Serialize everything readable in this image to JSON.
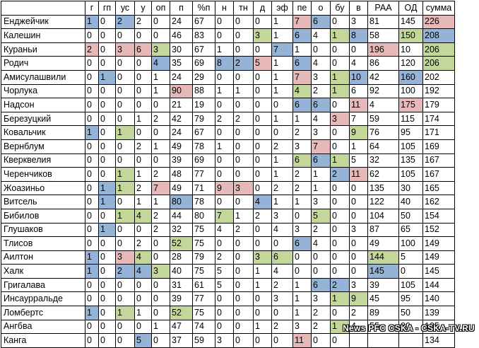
{
  "table": {
    "headers": [
      "",
      "г",
      "гп",
      "ус",
      "у",
      "оп",
      "п",
      "%п",
      "н",
      "тн",
      "д",
      "эф",
      "пе",
      "о",
      "бу",
      "в",
      "РАА",
      "ОД",
      "сумма"
    ],
    "rows": [
      {
        "name": "Енджейчик",
        "values": [
          "1",
          "0",
          "2",
          "2",
          "0",
          "24",
          "67",
          "0",
          "0",
          "0",
          "1",
          "7",
          "6",
          "0",
          "3",
          "81",
          "145",
          "226"
        ],
        "colors": [
          "b",
          "",
          "b",
          "",
          "",
          "",
          "",
          "",
          "",
          "",
          "",
          "r",
          "b",
          "",
          "",
          "",
          "",
          "r"
        ]
      },
      {
        "name": "Калешин",
        "values": [
          "0",
          "0",
          "0",
          "0",
          "0",
          "46",
          "83",
          "0",
          "0",
          "3",
          "1",
          "6",
          "4",
          "1",
          "8",
          "58",
          "150",
          "208"
        ],
        "colors": [
          "",
          "",
          "",
          "",
          "",
          "",
          "",
          "",
          "",
          "g",
          "",
          "b",
          "",
          "g",
          "b",
          "",
          "g",
          "b"
        ]
      },
      {
        "name": "Кураньи",
        "values": [
          "2",
          "0",
          "3",
          "6",
          "3",
          "30",
          "67",
          "1",
          "0",
          "0",
          "7",
          "1",
          "0",
          "0",
          "0",
          "196",
          "10",
          "206"
        ],
        "colors": [
          "r",
          "",
          "r",
          "r",
          "g",
          "",
          "",
          "",
          "",
          "",
          "b",
          "",
          "",
          "",
          "",
          "r",
          "",
          "g"
        ]
      },
      {
        "name": "Родич",
        "values": [
          "0",
          "0",
          "0",
          "0",
          "4",
          "35",
          "69",
          "8",
          "2",
          "5",
          "1",
          "6",
          "4",
          "0",
          "4",
          "86",
          "120",
          "206"
        ],
        "colors": [
          "",
          "",
          "",
          "",
          "b",
          "",
          "",
          "b",
          "b",
          "r",
          "",
          "b",
          "",
          "",
          "",
          "",
          "",
          "g"
        ]
      },
      {
        "name": "Амисулашвили",
        "values": [
          "0",
          "1",
          "0",
          "0",
          "1",
          "24",
          "29",
          "0",
          "0",
          "0",
          "1",
          "7",
          "3",
          "1",
          "10",
          "42",
          "160",
          "202"
        ],
        "colors": [
          "",
          "b",
          "",
          "",
          "",
          "",
          "",
          "",
          "",
          "",
          "",
          "r",
          "",
          "g",
          "b",
          "",
          "b",
          ""
        ]
      },
      {
        "name": "Чорлука",
        "values": [
          "0",
          "0",
          "0",
          "0",
          "1",
          "90",
          "88",
          "1",
          "1",
          "0",
          "1",
          "4",
          "2",
          "1",
          "6",
          "92",
          "100",
          "192"
        ],
        "colors": [
          "",
          "",
          "",
          "",
          "",
          "r",
          "",
          "",
          "",
          "",
          "",
          "g",
          "",
          "g",
          "",
          "",
          "",
          ""
        ]
      },
      {
        "name": "Надсон",
        "values": [
          "0",
          "0",
          "0",
          "0",
          "0",
          "21",
          "19",
          "0",
          "0",
          "0",
          "0",
          "6",
          "6",
          "0",
          "11",
          "4",
          "175",
          "179"
        ],
        "colors": [
          "",
          "",
          "",
          "",
          "",
          "",
          "",
          "",
          "",
          "",
          "",
          "b",
          "b",
          "",
          "r",
          "",
          "r",
          ""
        ]
      },
      {
        "name": "Березуцкий",
        "values": [
          "0",
          "0",
          "0",
          "1",
          "2",
          "42",
          "79",
          "2",
          "2",
          "0",
          "1",
          "1",
          "4",
          "3",
          "7",
          "59",
          "115",
          "174"
        ],
        "colors": [
          "",
          "",
          "",
          "",
          "",
          "",
          "",
          "",
          "",
          "",
          "",
          "",
          "",
          "r",
          "",
          "",
          "",
          ""
        ]
      },
      {
        "name": "Ковальчик",
        "values": [
          "1",
          "0",
          "1",
          "0",
          "0",
          "24",
          "67",
          "0",
          "0",
          "0",
          "0",
          "2",
          "3",
          "0",
          "9",
          "76",
          "95",
          "171"
        ],
        "colors": [
          "b",
          "",
          "g",
          "",
          "",
          "",
          "",
          "",
          "",
          "",
          "",
          "",
          "",
          "",
          "g",
          "",
          "",
          ""
        ]
      },
      {
        "name": "Вернблум",
        "values": [
          "0",
          "0",
          "0",
          "2",
          "1",
          "49",
          "78",
          "1",
          "0",
          "0",
          "2",
          "3",
          "7",
          "0",
          "1",
          "64",
          "105",
          "169"
        ],
        "colors": [
          "",
          "",
          "",
          "",
          "",
          "",
          "",
          "",
          "",
          "",
          "",
          "",
          "r",
          "",
          "",
          "",
          "",
          ""
        ]
      },
      {
        "name": "Кверквелия",
        "values": [
          "0",
          "0",
          "0",
          "0",
          "0",
          "39",
          "69",
          "0",
          "0",
          "0",
          "1",
          "6",
          "6",
          "1",
          "5",
          "32",
          "135",
          "167"
        ],
        "colors": [
          "",
          "",
          "",
          "",
          "",
          "",
          "",
          "",
          "",
          "",
          "",
          "g",
          "b",
          "g",
          "",
          "",
          "",
          ""
        ]
      },
      {
        "name": "Черенчиков",
        "values": [
          "0",
          "0",
          "1",
          "1",
          "2",
          "48",
          "77",
          "0",
          "0",
          "0",
          "1",
          "2",
          "1",
          "2",
          "11",
          "62",
          "105",
          "167"
        ],
        "colors": [
          "",
          "",
          "g",
          "",
          "",
          "",
          "",
          "",
          "",
          "",
          "",
          "",
          "",
          "b",
          "r",
          "",
          "",
          ""
        ]
      },
      {
        "name": "Жоазиньо",
        "values": [
          "0",
          "1",
          "1",
          "2",
          "7",
          "49",
          "71",
          "9",
          "3",
          "0",
          "2",
          "2",
          "1",
          "0",
          "0",
          "135",
          "30",
          "165"
        ],
        "colors": [
          "",
          "b",
          "g",
          "",
          "r",
          "",
          "",
          "r",
          "r",
          "",
          "",
          "",
          "",
          "",
          "",
          "",
          "",
          ""
        ]
      },
      {
        "name": "Витсель",
        "values": [
          "0",
          "1",
          "0",
          "1",
          "1",
          "80",
          "78",
          "0",
          "0",
          "4",
          "1",
          "1",
          "3",
          "0",
          "0",
          "122",
          "40",
          "162"
        ],
        "colors": [
          "",
          "b",
          "",
          "",
          "",
          "b",
          "",
          "",
          "",
          "b",
          "",
          "",
          "",
          "",
          "",
          "",
          "",
          ""
        ]
      },
      {
        "name": "Бибилов",
        "values": [
          "0",
          "0",
          "1",
          "4",
          "2",
          "44",
          "80",
          "7",
          "1",
          "2",
          "3",
          "0",
          "5",
          "0",
          "0",
          "104",
          "50",
          "154"
        ],
        "colors": [
          "",
          "",
          "g",
          "g",
          "",
          "",
          "",
          "g",
          "",
          "",
          "",
          "",
          "g",
          "",
          "",
          "",
          "",
          ""
        ]
      },
      {
        "name": "Глушаков",
        "values": [
          "0",
          "1",
          "0",
          "0",
          "2",
          "32",
          "75",
          "4",
          "2",
          "0",
          "4",
          "3",
          "2",
          "0",
          "3",
          "87",
          "65",
          "152"
        ],
        "colors": [
          "",
          "b",
          "",
          "",
          "",
          "",
          "",
          "",
          "",
          "",
          "",
          "",
          "",
          "",
          "",
          "",
          "",
          ""
        ]
      },
      {
        "name": "Тлисов",
        "values": [
          "0",
          "0",
          "0",
          "2",
          "0",
          "52",
          "75",
          "0",
          "0",
          "0",
          "0",
          "6",
          "4",
          "0",
          "0",
          "49",
          "100",
          "149"
        ],
        "colors": [
          "",
          "",
          "",
          "",
          "",
          "g",
          "",
          "",
          "",
          "",
          "",
          "b",
          "",
          "",
          "",
          "",
          "",
          ""
        ]
      },
      {
        "name": "Аилтон",
        "values": [
          "1",
          "0",
          "3",
          "4",
          "0",
          "28",
          "79",
          "2",
          "0",
          "3",
          "6",
          "0",
          "0",
          "0",
          "0",
          "144",
          "5",
          "149"
        ],
        "colors": [
          "b",
          "",
          "r",
          "g",
          "",
          "",
          "",
          "",
          "",
          "g",
          "g",
          "",
          "",
          "",
          "",
          "g",
          "",
          ""
        ]
      },
      {
        "name": "Халк",
        "values": [
          "1",
          "0",
          "2",
          "4",
          "3",
          "40",
          "75",
          "5",
          "0",
          "1",
          "4",
          "0",
          "0",
          "0",
          "0",
          "145",
          "0",
          "145"
        ],
        "colors": [
          "b",
          "",
          "b",
          "b",
          "g",
          "",
          "",
          "",
          "",
          "",
          "",
          "",
          "",
          "",
          "",
          "b",
          "",
          ""
        ]
      },
      {
        "name": "Григалава",
        "values": [
          "0",
          "0",
          "0",
          "0",
          "0",
          "31",
          "61",
          "5",
          "0",
          "1",
          "2",
          "1",
          "6",
          "2",
          "3",
          "39",
          "105",
          "144"
        ],
        "colors": [
          "",
          "",
          "",
          "",
          "",
          "",
          "",
          "",
          "",
          "",
          "",
          "",
          "b",
          "b",
          "",
          "",
          "",
          ""
        ]
      },
      {
        "name": "Инсаурральде",
        "values": [
          "0",
          "0",
          "0",
          "0",
          "0",
          "39",
          "77",
          "0",
          "0",
          "0",
          "3",
          "1",
          "3",
          "1",
          "9",
          "45",
          "95",
          "140"
        ],
        "colors": [
          "",
          "",
          "",
          "",
          "",
          "",
          "",
          "",
          "",
          "",
          "",
          "",
          "",
          "g",
          "g",
          "",
          "",
          ""
        ]
      },
      {
        "name": "Ломбертс",
        "values": [
          "1",
          "0",
          "1",
          "1",
          "0",
          "52",
          "75",
          "0",
          "0",
          "0",
          "0",
          "1",
          "2",
          "0",
          "2",
          "89",
          "50",
          "139"
        ],
        "colors": [
          "b",
          "",
          "g",
          "",
          "",
          "g",
          "",
          "",
          "",
          "",
          "",
          "",
          "",
          "",
          "",
          "",
          "",
          ""
        ]
      },
      {
        "name": "Ангбва",
        "values": [
          "0",
          "0",
          "0",
          "0",
          "1",
          "47",
          "74",
          "0",
          "0",
          "1",
          "2",
          "3",
          "2",
          "1",
          "4",
          "55",
          "80",
          "135"
        ],
        "colors": [
          "",
          "",
          "",
          "",
          "",
          "",
          "",
          "",
          "",
          "",
          "",
          "",
          "",
          "g",
          "",
          "",
          "",
          ""
        ]
      },
      {
        "name": "Канга",
        "values": [
          "0",
          "0",
          "0",
          "5",
          "0",
          "37",
          "59",
          "3",
          "0",
          "0",
          "0",
          "11",
          "0",
          "0",
          "",
          "",
          "",
          "134"
        ],
        "colors": [
          "",
          "",
          "",
          "b",
          "",
          "",
          "",
          "",
          "",
          "",
          "",
          "r",
          "",
          "",
          "",
          "",
          "",
          ""
        ]
      }
    ]
  },
  "watermark": "News PFC CSKA - CSKA-TV.RU",
  "colors": {
    "b": "#95b3d7",
    "g": "#c4d79b",
    "r": "#e6b8b7"
  }
}
